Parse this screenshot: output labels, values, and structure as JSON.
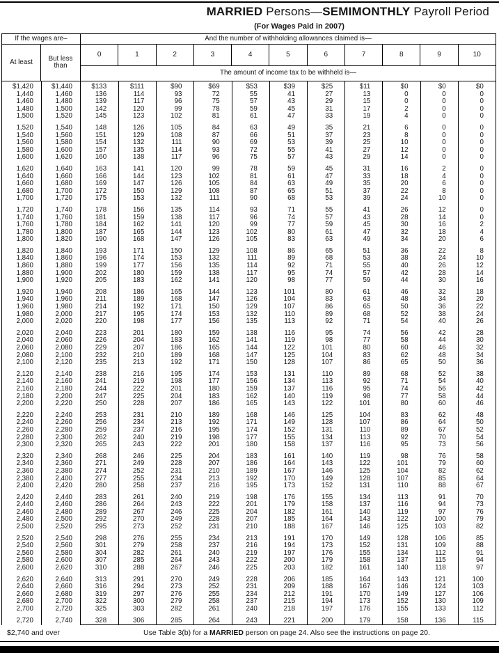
{
  "page": {
    "title_part1": "MARRIED",
    "title_part2": " Persons—",
    "title_part3": "SEMIMONTHLY",
    "title_part4": " Payroll Period",
    "subtitle": "(For Wages Paid in 2007)"
  },
  "header": {
    "wages_label": "If the wages are–",
    "allowances_label": "And the number of withholding allowances claimed is—",
    "at_least": "At least",
    "but_less_than": "But less than",
    "allowance_columns": [
      "0",
      "1",
      "2",
      "3",
      "4",
      "5",
      "6",
      "7",
      "8",
      "9",
      "10"
    ],
    "amount_label": "The amount of income tax to be withheld is—"
  },
  "footer": {
    "over_label": "$2,740 and over",
    "note_part1": "Use Table 3(b) for a ",
    "note_bold": "MARRIED",
    "note_part2": " person on page 24. Also see the instructions on page 20."
  },
  "chart_data": {
    "type": "table",
    "title": "MARRIED Persons—SEMIMONTHLY Payroll Period (For Wages Paid in 2007)",
    "columns": [
      "At least",
      "But less than",
      "0",
      "1",
      "2",
      "3",
      "4",
      "5",
      "6",
      "7",
      "8",
      "9",
      "10"
    ],
    "first_row_dollar_prefix": true,
    "groups": [
      [
        [
          1420,
          1440,
          133,
          111,
          90,
          69,
          53,
          39,
          25,
          11,
          0,
          0,
          0
        ],
        [
          1440,
          1460,
          136,
          114,
          93,
          72,
          55,
          41,
          27,
          13,
          0,
          0,
          0
        ],
        [
          1460,
          1480,
          139,
          117,
          96,
          75,
          57,
          43,
          29,
          15,
          0,
          0,
          0
        ],
        [
          1480,
          1500,
          142,
          120,
          99,
          78,
          59,
          45,
          31,
          17,
          2,
          0,
          0
        ],
        [
          1500,
          1520,
          145,
          123,
          102,
          81,
          61,
          47,
          33,
          19,
          4,
          0,
          0
        ]
      ],
      [
        [
          1520,
          1540,
          148,
          126,
          105,
          84,
          63,
          49,
          35,
          21,
          6,
          0,
          0
        ],
        [
          1540,
          1560,
          151,
          129,
          108,
          87,
          66,
          51,
          37,
          23,
          8,
          0,
          0
        ],
        [
          1560,
          1580,
          154,
          132,
          111,
          90,
          69,
          53,
          39,
          25,
          10,
          0,
          0
        ],
        [
          1580,
          1600,
          157,
          135,
          114,
          93,
          72,
          55,
          41,
          27,
          12,
          0,
          0
        ],
        [
          1600,
          1620,
          160,
          138,
          117,
          96,
          75,
          57,
          43,
          29,
          14,
          0,
          0
        ]
      ],
      [
        [
          1620,
          1640,
          163,
          141,
          120,
          99,
          78,
          59,
          45,
          31,
          16,
          2,
          0
        ],
        [
          1640,
          1660,
          166,
          144,
          123,
          102,
          81,
          61,
          47,
          33,
          18,
          4,
          0
        ],
        [
          1660,
          1680,
          169,
          147,
          126,
          105,
          84,
          63,
          49,
          35,
          20,
          6,
          0
        ],
        [
          1680,
          1700,
          172,
          150,
          129,
          108,
          87,
          65,
          51,
          37,
          22,
          8,
          0
        ],
        [
          1700,
          1720,
          175,
          153,
          132,
          111,
          90,
          68,
          53,
          39,
          24,
          10,
          0
        ]
      ],
      [
        [
          1720,
          1740,
          178,
          156,
          135,
          114,
          93,
          71,
          55,
          41,
          26,
          12,
          0
        ],
        [
          1740,
          1760,
          181,
          159,
          138,
          117,
          96,
          74,
          57,
          43,
          28,
          14,
          0
        ],
        [
          1760,
          1780,
          184,
          162,
          141,
          120,
          99,
          77,
          59,
          45,
          30,
          16,
          2
        ],
        [
          1780,
          1800,
          187,
          165,
          144,
          123,
          102,
          80,
          61,
          47,
          32,
          18,
          4
        ],
        [
          1800,
          1820,
          190,
          168,
          147,
          126,
          105,
          83,
          63,
          49,
          34,
          20,
          6
        ]
      ],
      [
        [
          1820,
          1840,
          193,
          171,
          150,
          129,
          108,
          86,
          65,
          51,
          36,
          22,
          8
        ],
        [
          1840,
          1860,
          196,
          174,
          153,
          132,
          111,
          89,
          68,
          53,
          38,
          24,
          10
        ],
        [
          1860,
          1880,
          199,
          177,
          156,
          135,
          114,
          92,
          71,
          55,
          40,
          26,
          12
        ],
        [
          1880,
          1900,
          202,
          180,
          159,
          138,
          117,
          95,
          74,
          57,
          42,
          28,
          14
        ],
        [
          1900,
          1920,
          205,
          183,
          162,
          141,
          120,
          98,
          77,
          59,
          44,
          30,
          16
        ]
      ],
      [
        [
          1920,
          1940,
          208,
          186,
          165,
          144,
          123,
          101,
          80,
          61,
          46,
          32,
          18
        ],
        [
          1940,
          1960,
          211,
          189,
          168,
          147,
          126,
          104,
          83,
          63,
          48,
          34,
          20
        ],
        [
          1960,
          1980,
          214,
          192,
          171,
          150,
          129,
          107,
          86,
          65,
          50,
          36,
          22
        ],
        [
          1980,
          2000,
          217,
          195,
          174,
          153,
          132,
          110,
          89,
          68,
          52,
          38,
          24
        ],
        [
          2000,
          2020,
          220,
          198,
          177,
          156,
          135,
          113,
          92,
          71,
          54,
          40,
          26
        ]
      ],
      [
        [
          2020,
          2040,
          223,
          201,
          180,
          159,
          138,
          116,
          95,
          74,
          56,
          42,
          28
        ],
        [
          2040,
          2060,
          226,
          204,
          183,
          162,
          141,
          119,
          98,
          77,
          58,
          44,
          30
        ],
        [
          2060,
          2080,
          229,
          207,
          186,
          165,
          144,
          122,
          101,
          80,
          60,
          46,
          32
        ],
        [
          2080,
          2100,
          232,
          210,
          189,
          168,
          147,
          125,
          104,
          83,
          62,
          48,
          34
        ],
        [
          2100,
          2120,
          235,
          213,
          192,
          171,
          150,
          128,
          107,
          86,
          65,
          50,
          36
        ]
      ],
      [
        [
          2120,
          2140,
          238,
          216,
          195,
          174,
          153,
          131,
          110,
          89,
          68,
          52,
          38
        ],
        [
          2140,
          2160,
          241,
          219,
          198,
          177,
          156,
          134,
          113,
          92,
          71,
          54,
          40
        ],
        [
          2160,
          2180,
          244,
          222,
          201,
          180,
          159,
          137,
          116,
          95,
          74,
          56,
          42
        ],
        [
          2180,
          2200,
          247,
          225,
          204,
          183,
          162,
          140,
          119,
          98,
          77,
          58,
          44
        ],
        [
          2200,
          2220,
          250,
          228,
          207,
          186,
          165,
          143,
          122,
          101,
          80,
          60,
          46
        ]
      ],
      [
        [
          2220,
          2240,
          253,
          231,
          210,
          189,
          168,
          146,
          125,
          104,
          83,
          62,
          48
        ],
        [
          2240,
          2260,
          256,
          234,
          213,
          192,
          171,
          149,
          128,
          107,
          86,
          64,
          50
        ],
        [
          2260,
          2280,
          259,
          237,
          216,
          195,
          174,
          152,
          131,
          110,
          89,
          67,
          52
        ],
        [
          2280,
          2300,
          262,
          240,
          219,
          198,
          177,
          155,
          134,
          113,
          92,
          70,
          54
        ],
        [
          2300,
          2320,
          265,
          243,
          222,
          201,
          180,
          158,
          137,
          116,
          95,
          73,
          56
        ]
      ],
      [
        [
          2320,
          2340,
          268,
          246,
          225,
          204,
          183,
          161,
          140,
          119,
          98,
          76,
          58
        ],
        [
          2340,
          2360,
          271,
          249,
          228,
          207,
          186,
          164,
          143,
          122,
          101,
          79,
          60
        ],
        [
          2360,
          2380,
          274,
          252,
          231,
          210,
          189,
          167,
          146,
          125,
          104,
          82,
          62
        ],
        [
          2380,
          2400,
          277,
          255,
          234,
          213,
          192,
          170,
          149,
          128,
          107,
          85,
          64
        ],
        [
          2400,
          2420,
          280,
          258,
          237,
          216,
          195,
          173,
          152,
          131,
          110,
          88,
          67
        ]
      ],
      [
        [
          2420,
          2440,
          283,
          261,
          240,
          219,
          198,
          176,
          155,
          134,
          113,
          91,
          70
        ],
        [
          2440,
          2460,
          286,
          264,
          243,
          222,
          201,
          179,
          158,
          137,
          116,
          94,
          73
        ],
        [
          2460,
          2480,
          289,
          267,
          246,
          225,
          204,
          182,
          161,
          140,
          119,
          97,
          76
        ],
        [
          2480,
          2500,
          292,
          270,
          249,
          228,
          207,
          185,
          164,
          143,
          122,
          100,
          79
        ],
        [
          2500,
          2520,
          295,
          273,
          252,
          231,
          210,
          188,
          167,
          146,
          125,
          103,
          82
        ]
      ],
      [
        [
          2520,
          2540,
          298,
          276,
          255,
          234,
          213,
          191,
          170,
          149,
          128,
          106,
          85
        ],
        [
          2540,
          2560,
          301,
          279,
          258,
          237,
          216,
          194,
          173,
          152,
          131,
          109,
          88
        ],
        [
          2560,
          2580,
          304,
          282,
          261,
          240,
          219,
          197,
          176,
          155,
          134,
          112,
          91
        ],
        [
          2580,
          2600,
          307,
          285,
          264,
          243,
          222,
          200,
          179,
          158,
          137,
          115,
          94
        ],
        [
          2600,
          2620,
          310,
          288,
          267,
          246,
          225,
          203,
          182,
          161,
          140,
          118,
          97
        ]
      ],
      [
        [
          2620,
          2640,
          313,
          291,
          270,
          249,
          228,
          206,
          185,
          164,
          143,
          121,
          100
        ],
        [
          2640,
          2660,
          316,
          294,
          273,
          252,
          231,
          209,
          188,
          167,
          146,
          124,
          103
        ],
        [
          2660,
          2680,
          319,
          297,
          276,
          255,
          234,
          212,
          191,
          170,
          149,
          127,
          106
        ],
        [
          2680,
          2700,
          322,
          300,
          279,
          258,
          237,
          215,
          194,
          173,
          152,
          130,
          109
        ],
        [
          2700,
          2720,
          325,
          303,
          282,
          261,
          240,
          218,
          197,
          176,
          155,
          133,
          112
        ]
      ],
      [
        [
          2720,
          2740,
          328,
          306,
          285,
          264,
          243,
          221,
          200,
          179,
          158,
          136,
          115
        ]
      ]
    ]
  }
}
